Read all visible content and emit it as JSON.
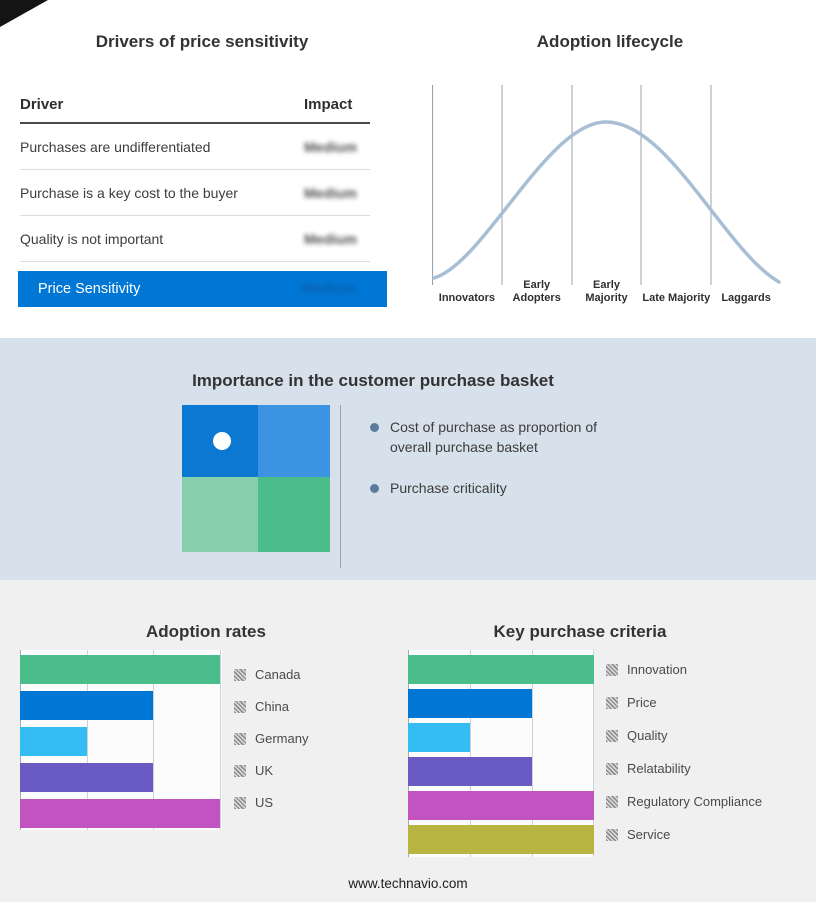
{
  "page": {
    "footer": "www.technavio.com"
  },
  "drivers_panel": {
    "title": "Drivers of price sensitivity",
    "columns": {
      "driver": "Driver",
      "impact": "Impact"
    },
    "rows": [
      {
        "driver": "Purchases are undifferentiated",
        "impact": "Medium"
      },
      {
        "driver": "Purchase is a key cost to the buyer",
        "impact": "Medium"
      },
      {
        "driver": "Quality is not important",
        "impact": "Medium"
      }
    ],
    "summary": {
      "label": "Price Sensitivity",
      "impact": "Medium"
    },
    "summary_color": "#0077D4"
  },
  "basket_panel": {
    "title": "Importance in the customer purchase basket",
    "bullets": [
      "Cost of purchase as proportion of overall purchase basket",
      "Purchase criticality"
    ],
    "quadrant_colors": [
      "#0B79D2",
      "#3C93E1",
      "#86CFAC",
      "#4BBD8A"
    ]
  },
  "chart_data": [
    {
      "type": "line",
      "title": "Adoption lifecycle",
      "categories": [
        "Innovators",
        "Early Adopters",
        "Early Majority",
        "Late Majority",
        "Laggards"
      ],
      "description": "Bell curve rising from Innovators, peaking over Early Majority, falling to Laggards",
      "curve_color": "#A8BED5",
      "grid": true
    },
    {
      "type": "bar",
      "orientation": "horizontal",
      "title": "Adoption rates",
      "categories": [
        "Canada",
        "China",
        "Germany",
        "UK",
        "US"
      ],
      "values": [
        3,
        2,
        1,
        2,
        3
      ],
      "colors": [
        "#4BBD8A",
        "#0077D4",
        "#33BDF2",
        "#6A5BC4",
        "#C353C1"
      ],
      "xlim": [
        0,
        3
      ],
      "grid": true,
      "legend_position": "right"
    },
    {
      "type": "bar",
      "orientation": "horizontal",
      "title": "Key purchase criteria",
      "categories": [
        "Innovation",
        "Price",
        "Quality",
        "Relatability",
        "Regulatory Compliance",
        "Service"
      ],
      "values": [
        3,
        2,
        1,
        2,
        3,
        3
      ],
      "colors": [
        "#4BBD8A",
        "#0077D4",
        "#33BDF2",
        "#6A5BC4",
        "#C353C1",
        "#B7B441"
      ],
      "xlim": [
        0,
        3
      ],
      "grid": true,
      "legend_position": "right"
    }
  ]
}
